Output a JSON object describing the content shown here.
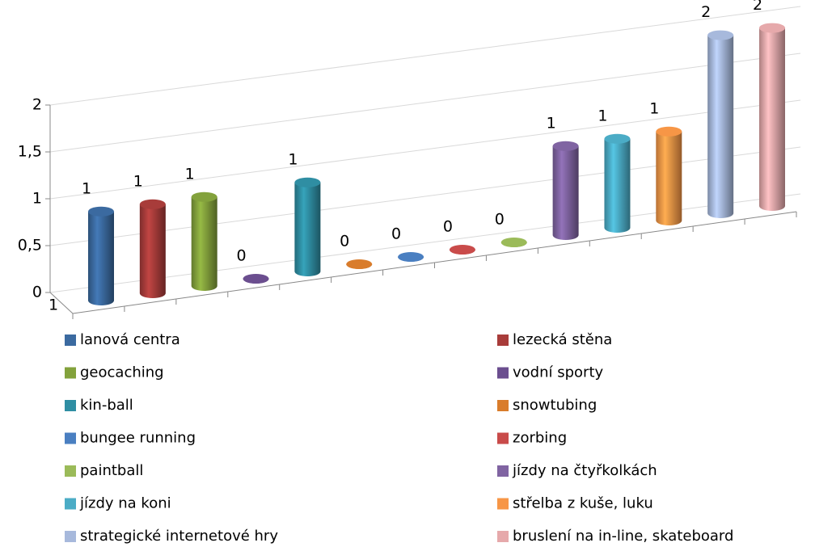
{
  "chart_data": {
    "type": "bar3d",
    "categories": [
      "1"
    ],
    "series": [
      {
        "name": "lanová centra",
        "color": "#3b6aa0",
        "values": [
          1
        ]
      },
      {
        "name": "lezecká stěna",
        "color": "#a83c3a",
        "values": [
          1
        ]
      },
      {
        "name": "geocaching",
        "color": "#83a23c",
        "values": [
          1
        ]
      },
      {
        "name": "vodní sporty",
        "color": "#6b4e8f",
        "values": [
          0
        ]
      },
      {
        "name": "kin-ball",
        "color": "#2f8ea3",
        "values": [
          1
        ]
      },
      {
        "name": "snowtubing",
        "color": "#d97c2b",
        "values": [
          0
        ]
      },
      {
        "name": "bungee running",
        "color": "#4a7fc1",
        "values": [
          0
        ]
      },
      {
        "name": "zorbing",
        "color": "#c94b4a",
        "values": [
          0
        ]
      },
      {
        "name": "paintball",
        "color": "#9bbb59",
        "values": [
          0
        ]
      },
      {
        "name": "jízdy na čtyřkolkách",
        "color": "#8064a2",
        "values": [
          1
        ]
      },
      {
        "name": "jízdy na koni",
        "color": "#4bacc6",
        "values": [
          1
        ]
      },
      {
        "name": "střelba z kuše, luku",
        "color": "#f79646",
        "values": [
          1
        ]
      },
      {
        "name": "strategické internetové hry",
        "color": "#a7b9dc",
        "values": [
          2
        ]
      },
      {
        "name": "bruslení na in-line, skateboard",
        "color": "#e6a9ab",
        "values": [
          2
        ]
      }
    ],
    "ylim": [
      0,
      2
    ],
    "yticks": [
      0,
      {
        "value": 0.5,
        "label": "0,5"
      },
      1,
      {
        "value": 1.5,
        "label": "1,5"
      },
      2
    ],
    "grid": true,
    "legend": "bottom"
  }
}
